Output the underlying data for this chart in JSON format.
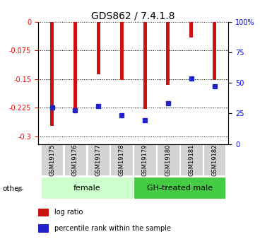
{
  "title": "GDS862 / 7.4.1.8",
  "samples": [
    "GSM19175",
    "GSM19176",
    "GSM19177",
    "GSM19178",
    "GSM19179",
    "GSM19180",
    "GSM19181",
    "GSM19182"
  ],
  "log_ratio": [
    -0.272,
    -0.235,
    -0.138,
    -0.152,
    -0.228,
    -0.165,
    -0.04,
    -0.152
  ],
  "percentile_rank_y": [
    -0.225,
    -0.232,
    -0.22,
    -0.245,
    -0.258,
    -0.213,
    -0.148,
    -0.168
  ],
  "ylim_left": [
    -0.32,
    0.0
  ],
  "ylim_right": [
    0,
    100
  ],
  "yticks_left": [
    0,
    -0.075,
    -0.15,
    -0.225,
    -0.3
  ],
  "yticks_right": [
    100,
    75,
    50,
    25,
    0
  ],
  "yticks_right_labels": [
    "100%",
    "75",
    "50",
    "25",
    "0"
  ],
  "bar_color": "#cc1111",
  "blue_color": "#2222cc",
  "bar_width": 0.15,
  "groups": [
    {
      "label": "female",
      "start": 0,
      "end": 4,
      "color": "#ccffcc"
    },
    {
      "label": "GH-treated male",
      "start": 4,
      "end": 8,
      "color": "#44cc44"
    }
  ],
  "legend_items": [
    {
      "color": "#cc1111",
      "label": "log ratio"
    },
    {
      "color": "#2222cc",
      "label": "percentile rank within the sample"
    }
  ]
}
